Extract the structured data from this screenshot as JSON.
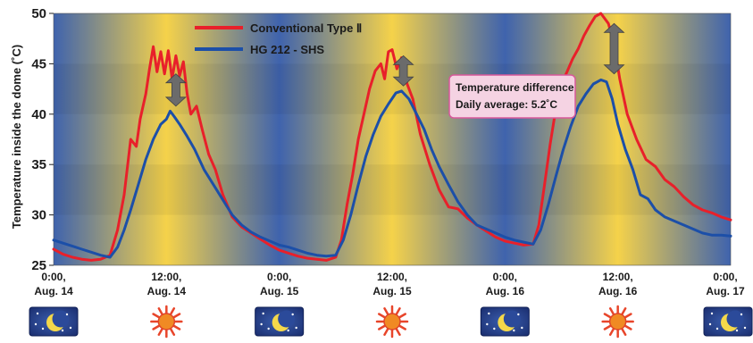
{
  "chart_data": {
    "type": "line",
    "ylabel": "Temperature inside the dome (˚C)",
    "ylim": [
      25,
      50
    ],
    "yticks": [
      25,
      30,
      35,
      40,
      45,
      50
    ],
    "xlim": [
      0,
      72
    ],
    "grid": false,
    "legend_position": "top-left",
    "xticks": [
      {
        "x": 0,
        "label1": "0:00,",
        "label2": "Aug. 14",
        "icon": "moon-icon"
      },
      {
        "x": 12,
        "label1": "12:00,",
        "label2": "Aug. 14",
        "icon": "sun-icon"
      },
      {
        "x": 24,
        "label1": "0:00,",
        "label2": "Aug. 15",
        "icon": "moon-icon"
      },
      {
        "x": 36,
        "label1": "12:00,",
        "label2": "Aug. 15",
        "icon": "sun-icon"
      },
      {
        "x": 48,
        "label1": "0:00,",
        "label2": "Aug. 16",
        "icon": "moon-icon"
      },
      {
        "x": 60,
        "label1": "12:00,",
        "label2": "Aug. 16",
        "icon": "sun-icon"
      },
      {
        "x": 72,
        "label1": "0:00,",
        "label2": "Aug. 17",
        "icon": "moon-icon"
      }
    ],
    "series": [
      {
        "name": "Conventional Type Ⅱ",
        "color": "#e8202a",
        "points": [
          [
            0,
            26.6
          ],
          [
            1,
            26.1
          ],
          [
            2,
            25.8
          ],
          [
            3,
            25.6
          ],
          [
            4,
            25.5
          ],
          [
            5,
            25.6
          ],
          [
            6,
            26.0
          ],
          [
            6.8,
            28.5
          ],
          [
            7.5,
            32.0
          ],
          [
            8.2,
            37.5
          ],
          [
            8.8,
            36.8
          ],
          [
            9.2,
            39.5
          ],
          [
            9.8,
            42.0
          ],
          [
            10.2,
            44.5
          ],
          [
            10.6,
            46.7
          ],
          [
            11.0,
            44.2
          ],
          [
            11.4,
            46.2
          ],
          [
            11.8,
            44.0
          ],
          [
            12.2,
            46.3
          ],
          [
            12.6,
            43.5
          ],
          [
            13.0,
            45.8
          ],
          [
            13.4,
            43.8
          ],
          [
            13.8,
            45.2
          ],
          [
            14.2,
            42.0
          ],
          [
            14.6,
            40.0
          ],
          [
            15.2,
            40.8
          ],
          [
            15.8,
            38.5
          ],
          [
            16.5,
            36.0
          ],
          [
            17.2,
            34.5
          ],
          [
            18.0,
            32.0
          ],
          [
            19.0,
            29.8
          ],
          [
            20.0,
            28.8
          ],
          [
            21.0,
            28.2
          ],
          [
            22.0,
            27.6
          ],
          [
            23.0,
            27.0
          ],
          [
            24.0,
            26.5
          ],
          [
            25.0,
            26.2
          ],
          [
            26.0,
            25.9
          ],
          [
            27.0,
            25.7
          ],
          [
            28.0,
            25.6
          ],
          [
            29.0,
            25.5
          ],
          [
            30.0,
            25.8
          ],
          [
            30.6,
            27.5
          ],
          [
            31.2,
            31.0
          ],
          [
            31.8,
            34.0
          ],
          [
            32.4,
            37.5
          ],
          [
            33.0,
            40.0
          ],
          [
            33.6,
            42.5
          ],
          [
            34.2,
            44.3
          ],
          [
            34.8,
            45.0
          ],
          [
            35.2,
            43.5
          ],
          [
            35.6,
            46.2
          ],
          [
            36.0,
            46.4
          ],
          [
            36.5,
            44.5
          ],
          [
            37.0,
            45.6
          ],
          [
            37.6,
            43.0
          ],
          [
            38.2,
            41.5
          ],
          [
            39.0,
            38.0
          ],
          [
            40.0,
            35.0
          ],
          [
            41.0,
            32.5
          ],
          [
            42.0,
            30.8
          ],
          [
            43.0,
            30.6
          ],
          [
            44.0,
            29.7
          ],
          [
            45.0,
            29.0
          ],
          [
            46.0,
            28.4
          ],
          [
            47.0,
            27.8
          ],
          [
            48.0,
            27.4
          ],
          [
            49.0,
            27.2
          ],
          [
            50.0,
            27.0
          ],
          [
            51.0,
            27.1
          ],
          [
            51.6,
            29.0
          ],
          [
            52.2,
            33.0
          ],
          [
            52.8,
            37.0
          ],
          [
            53.4,
            40.5
          ],
          [
            54.0,
            43.0
          ],
          [
            54.6,
            44.2
          ],
          [
            55.2,
            45.5
          ],
          [
            55.8,
            46.5
          ],
          [
            56.4,
            47.8
          ],
          [
            57.0,
            48.8
          ],
          [
            57.6,
            49.7
          ],
          [
            58.2,
            50.0
          ],
          [
            59.0,
            49.0
          ],
          [
            59.6,
            47.0
          ],
          [
            60.2,
            43.5
          ],
          [
            61.0,
            40.0
          ],
          [
            62.0,
            37.5
          ],
          [
            63.0,
            35.5
          ],
          [
            64.0,
            34.8
          ],
          [
            65.0,
            33.5
          ],
          [
            66.0,
            32.8
          ],
          [
            67.0,
            31.8
          ],
          [
            68.0,
            31.0
          ],
          [
            69.0,
            30.5
          ],
          [
            70.0,
            30.2
          ],
          [
            71.0,
            29.8
          ],
          [
            72.0,
            29.5
          ]
        ]
      },
      {
        "name": "HG 212 - SHS",
        "color": "#1c4fa8",
        "points": [
          [
            0,
            27.5
          ],
          [
            1,
            27.2
          ],
          [
            2,
            26.9
          ],
          [
            3,
            26.6
          ],
          [
            4,
            26.3
          ],
          [
            5,
            26.0
          ],
          [
            6,
            25.8
          ],
          [
            6.8,
            26.8
          ],
          [
            7.5,
            28.5
          ],
          [
            8.2,
            30.5
          ],
          [
            9.0,
            33.0
          ],
          [
            9.8,
            35.5
          ],
          [
            10.6,
            37.5
          ],
          [
            11.4,
            39.0
          ],
          [
            12.0,
            39.5
          ],
          [
            12.4,
            40.3
          ],
          [
            12.8,
            39.8
          ],
          [
            13.4,
            39.0
          ],
          [
            14.2,
            37.8
          ],
          [
            15.0,
            36.5
          ],
          [
            16.0,
            34.5
          ],
          [
            17.0,
            33.0
          ],
          [
            18.0,
            31.5
          ],
          [
            19.0,
            30.0
          ],
          [
            20.0,
            29.0
          ],
          [
            21.0,
            28.3
          ],
          [
            22.0,
            27.8
          ],
          [
            23.0,
            27.4
          ],
          [
            24.0,
            27.0
          ],
          [
            25.0,
            26.8
          ],
          [
            26.0,
            26.5
          ],
          [
            27.0,
            26.2
          ],
          [
            28.0,
            26.0
          ],
          [
            29.0,
            25.9
          ],
          [
            30.0,
            26.0
          ],
          [
            30.8,
            27.5
          ],
          [
            31.6,
            30.0
          ],
          [
            32.4,
            33.0
          ],
          [
            33.2,
            35.8
          ],
          [
            34.0,
            38.0
          ],
          [
            34.8,
            39.8
          ],
          [
            35.6,
            41.0
          ],
          [
            36.4,
            42.1
          ],
          [
            37.0,
            42.3
          ],
          [
            37.8,
            41.5
          ],
          [
            38.6,
            40.0
          ],
          [
            39.4,
            38.5
          ],
          [
            40.2,
            36.5
          ],
          [
            41.0,
            34.8
          ],
          [
            42.0,
            33.0
          ],
          [
            43.0,
            31.3
          ],
          [
            44.0,
            30.0
          ],
          [
            45.0,
            29.0
          ],
          [
            46.0,
            28.6
          ],
          [
            47.0,
            28.2
          ],
          [
            48.0,
            27.8
          ],
          [
            49.0,
            27.5
          ],
          [
            50.0,
            27.3
          ],
          [
            51.0,
            27.1
          ],
          [
            51.8,
            28.5
          ],
          [
            52.6,
            31.0
          ],
          [
            53.4,
            33.8
          ],
          [
            54.2,
            36.5
          ],
          [
            55.0,
            38.8
          ],
          [
            55.8,
            40.8
          ],
          [
            56.6,
            42.0
          ],
          [
            57.4,
            43.0
          ],
          [
            58.2,
            43.4
          ],
          [
            58.8,
            43.2
          ],
          [
            59.4,
            41.5
          ],
          [
            60.0,
            39.0
          ],
          [
            60.8,
            36.5
          ],
          [
            61.6,
            34.5
          ],
          [
            62.4,
            32.0
          ],
          [
            63.2,
            31.6
          ],
          [
            64.0,
            30.5
          ],
          [
            65.0,
            29.8
          ],
          [
            66.0,
            29.4
          ],
          [
            67.0,
            29.0
          ],
          [
            68.0,
            28.6
          ],
          [
            69.0,
            28.2
          ],
          [
            70.0,
            28.0
          ],
          [
            71.0,
            28.0
          ],
          [
            72.0,
            27.9
          ]
        ]
      }
    ],
    "annotations": {
      "box_line1": "Temperature difference",
      "box_line2": "Daily average: 5.2˚C",
      "arrows": [
        {
          "x": 13.0,
          "y_top": 44.0,
          "y_bottom": 40.8
        },
        {
          "x": 37.2,
          "y_top": 45.8,
          "y_bottom": 42.8
        },
        {
          "x": 59.6,
          "y_top": 49.0,
          "y_bottom": 44.0
        }
      ]
    }
  }
}
